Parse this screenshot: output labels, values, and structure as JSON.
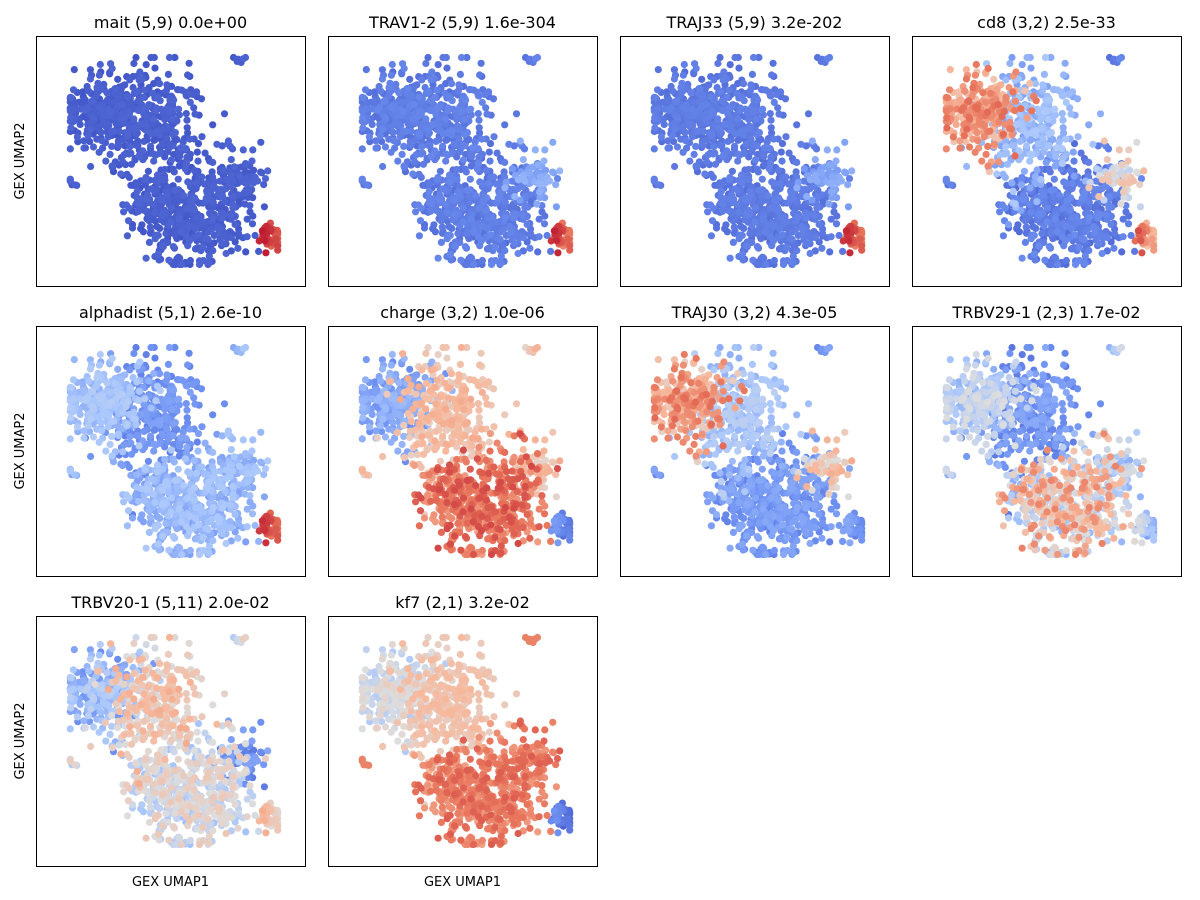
{
  "chart_data": {
    "type": "scatter",
    "layout": "grid 3x4",
    "common_axes": {
      "xlabel": "GEX UMAP1",
      "ylabel": "GEX UMAP2",
      "ticks": "none"
    },
    "colormap": "coolwarm",
    "colormap_stops": [
      "#3b4cc0",
      "#6f92f3",
      "#aac7fd",
      "#dddddd",
      "#f7b89c",
      "#e7745b",
      "#b40426"
    ],
    "panels": [
      {
        "title": "mait (5,9) 0.0e+00",
        "feature": "mait",
        "cluster": "(5,9)",
        "pvalue": "0.0e+00",
        "pattern": "mait"
      },
      {
        "title": "TRAV1-2 (5,9) 1.6e-304",
        "feature": "TRAV1-2",
        "cluster": "(5,9)",
        "pvalue": "1.6e-304",
        "pattern": "trav"
      },
      {
        "title": "TRAJ33 (5,9) 3.2e-202",
        "feature": "TRAJ33",
        "cluster": "(5,9)",
        "pvalue": "3.2e-202",
        "pattern": "traj33"
      },
      {
        "title": "cd8 (3,2) 2.5e-33",
        "feature": "cd8",
        "cluster": "(3,2)",
        "pvalue": "2.5e-33",
        "pattern": "cd8"
      },
      {
        "title": "alphadist (5,1) 2.6e-10",
        "feature": "alphadist",
        "cluster": "(5,1)",
        "pvalue": "2.6e-10",
        "pattern": "alphadist"
      },
      {
        "title": "charge (3,2) 1.0e-06",
        "feature": "charge",
        "cluster": "(3,2)",
        "pvalue": "1.0e-06",
        "pattern": "charge"
      },
      {
        "title": "TRAJ30 (3,2) 4.3e-05",
        "feature": "TRAJ30",
        "cluster": "(3,2)",
        "pvalue": "4.3e-05",
        "pattern": "traj30"
      },
      {
        "title": "TRBV29-1 (2,3) 1.7e-02",
        "feature": "TRBV29-1",
        "cluster": "(2,3)",
        "pvalue": "1.7e-02",
        "pattern": "trbv29"
      },
      {
        "title": "TRBV20-1 (5,11) 2.0e-02",
        "feature": "TRBV20-1",
        "cluster": "(5,11)",
        "pvalue": "2.0e-02",
        "pattern": "trbv20"
      },
      {
        "title": "kf7 (2,1) 3.2e-02",
        "feature": "kf7",
        "cluster": "(2,1)",
        "pvalue": "3.2e-02",
        "pattern": "kf7"
      }
    ],
    "ylabel_rows": [
      0,
      1,
      2
    ],
    "xlabel_panels": [
      8,
      9
    ]
  }
}
